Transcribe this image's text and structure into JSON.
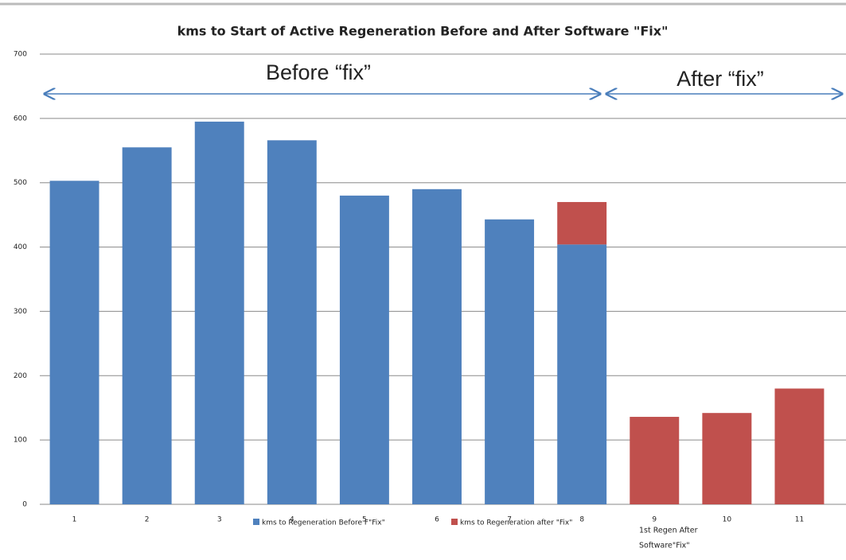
{
  "chart_data": {
    "type": "stacked_bar",
    "title": "kms to Start of Active Regeneration Before and After Software \"Fix\"",
    "categories": [
      "1",
      "2",
      "3",
      "4",
      "5",
      "6",
      "7",
      "8",
      "9",
      "10",
      "11"
    ],
    "series": [
      {
        "name": "kms to Regeneration Before F\"Fix\"",
        "color": "#4f81bd",
        "values": [
          503,
          555,
          595,
          566,
          480,
          490,
          443,
          404,
          null,
          null,
          null
        ]
      },
      {
        "name": "kms to Regeneration after \"Fix\"",
        "color": "#c0504d",
        "values": [
          null,
          null,
          null,
          null,
          null,
          null,
          null,
          66,
          136,
          142,
          180
        ]
      }
    ],
    "ylim": [
      0,
      700
    ],
    "yticks": [
      0,
      100,
      200,
      300,
      400,
      500,
      600,
      700
    ],
    "grid": true,
    "legend": "bottom",
    "annotations": [
      "Before “fix”",
      "After “fix”"
    ],
    "note": [
      "1st  Regen After",
      "Software\"Fix\""
    ]
  }
}
